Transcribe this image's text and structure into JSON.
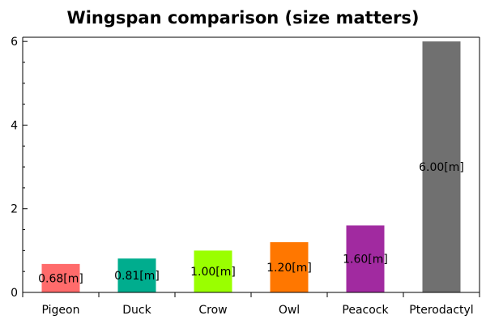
{
  "chart_data": {
    "type": "bar",
    "title": "Wingspan comparison (size matters)",
    "xlabel": "",
    "ylabel": "",
    "categories": [
      "Pigeon",
      "Duck",
      "Crow",
      "Owl",
      "Peacock",
      "Pterodactyl"
    ],
    "values": [
      0.68,
      0.81,
      1.0,
      1.2,
      1.6,
      6.0
    ],
    "value_labels": [
      "0.68[m]",
      "0.81[m]",
      "1.00[m]",
      "1.20[m]",
      "1.60[m]",
      "6.00[m]"
    ],
    "colors": [
      "#ff6b6b",
      "#00ad8e",
      "#9aff00",
      "#ff7700",
      "#a12aa0",
      "#707070"
    ],
    "ylim": [
      0,
      6.1
    ],
    "y_ticks": [
      0,
      2,
      4,
      6
    ],
    "grid": false,
    "legend": "none"
  }
}
